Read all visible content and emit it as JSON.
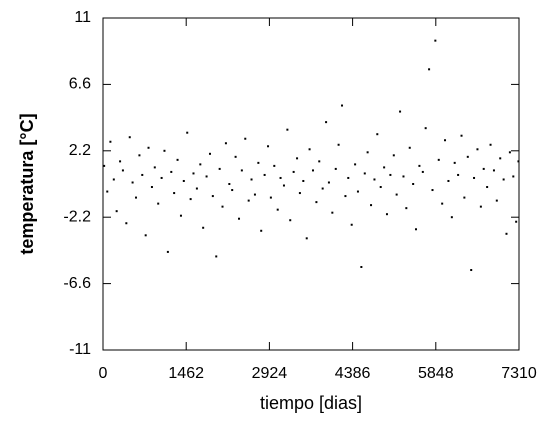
{
  "chart_data": {
    "type": "scatter",
    "x_label": "tiempo [dias]",
    "y_label": "temperatura [°C]",
    "xlim": [
      0,
      7310
    ],
    "xticks": [
      0,
      1462,
      2924,
      4386,
      5848,
      7310
    ],
    "ylim": [
      -11,
      11
    ],
    "yticks": [
      -11,
      -6.6,
      -2.2,
      2.2,
      6.6,
      11
    ],
    "color": "#000000",
    "x": [
      20,
      75,
      130,
      190,
      240,
      300,
      350,
      410,
      470,
      520,
      580,
      640,
      690,
      750,
      800,
      860,
      910,
      970,
      1030,
      1080,
      1140,
      1200,
      1250,
      1310,
      1370,
      1420,
      1480,
      1540,
      1590,
      1650,
      1710,
      1760,
      1820,
      1880,
      1930,
      1990,
      2050,
      2100,
      2160,
      2220,
      2270,
      2330,
      2390,
      2440,
      2500,
      2560,
      2610,
      2670,
      2730,
      2780,
      2840,
      2900,
      2950,
      3010,
      3070,
      3120,
      3180,
      3240,
      3290,
      3350,
      3410,
      3460,
      3520,
      3580,
      3630,
      3690,
      3750,
      3800,
      3860,
      3920,
      3970,
      4030,
      4090,
      4140,
      4200,
      4260,
      4310,
      4370,
      4430,
      4480,
      4540,
      4600,
      4650,
      4710,
      4770,
      4820,
      4880,
      4940,
      4990,
      5050,
      5110,
      5160,
      5220,
      5280,
      5330,
      5390,
      5450,
      5500,
      5560,
      5620,
      5670,
      5730,
      5790,
      5840,
      5900,
      5960,
      6010,
      6070,
      6130,
      6180,
      6240,
      6300,
      6350,
      6410,
      6470,
      6520,
      6580,
      6640,
      6690,
      6750,
      6810,
      6870,
      6920,
      6980,
      7040,
      7090,
      7150,
      7210,
      7260,
      7300
    ],
    "values": [
      1.2,
      -0.5,
      2.8,
      0.3,
      -1.8,
      1.5,
      0.9,
      -2.6,
      3.1,
      0.1,
      -0.9,
      1.9,
      0.6,
      -3.4,
      2.4,
      -0.2,
      1.1,
      -1.3,
      0.4,
      2.2,
      -4.5,
      0.8,
      -0.6,
      1.6,
      -2.1,
      0.2,
      3.4,
      -1.0,
      0.7,
      -0.3,
      1.3,
      -2.9,
      0.5,
      2.0,
      -0.8,
      -4.8,
      1.0,
      -1.5,
      2.7,
      0.0,
      -0.4,
      1.8,
      -2.3,
      0.9,
      3.0,
      -1.1,
      0.3,
      -0.7,
      1.4,
      -3.1,
      0.6,
      2.5,
      -0.9,
      1.2,
      -1.7,
      0.4,
      -0.1,
      3.6,
      -2.4,
      0.8,
      1.7,
      -0.6,
      0.2,
      -3.6,
      2.3,
      0.9,
      -1.2,
      1.5,
      -0.3,
      4.1,
      0.1,
      -1.9,
      1.0,
      2.6,
      5.2,
      -0.8,
      0.4,
      -2.7,
      1.3,
      -0.5,
      -5.5,
      0.7,
      2.1,
      -1.4,
      0.3,
      3.3,
      -0.2,
      1.1,
      -2.0,
      0.6,
      1.9,
      -0.7,
      4.8,
      0.5,
      -1.6,
      2.4,
      0.0,
      -3.0,
      1.2,
      0.8,
      3.7,
      7.6,
      -0.4,
      9.5,
      1.6,
      -1.3,
      2.9,
      0.2,
      -2.2,
      1.4,
      0.6,
      3.2,
      -0.9,
      1.8,
      -5.7,
      0.4,
      2.3,
      -1.5,
      1.0,
      -0.2,
      2.6,
      0.9,
      -1.1,
      1.7,
      0.3,
      -3.3,
      2.1,
      0.5,
      -2.5,
      1.5
    ]
  }
}
